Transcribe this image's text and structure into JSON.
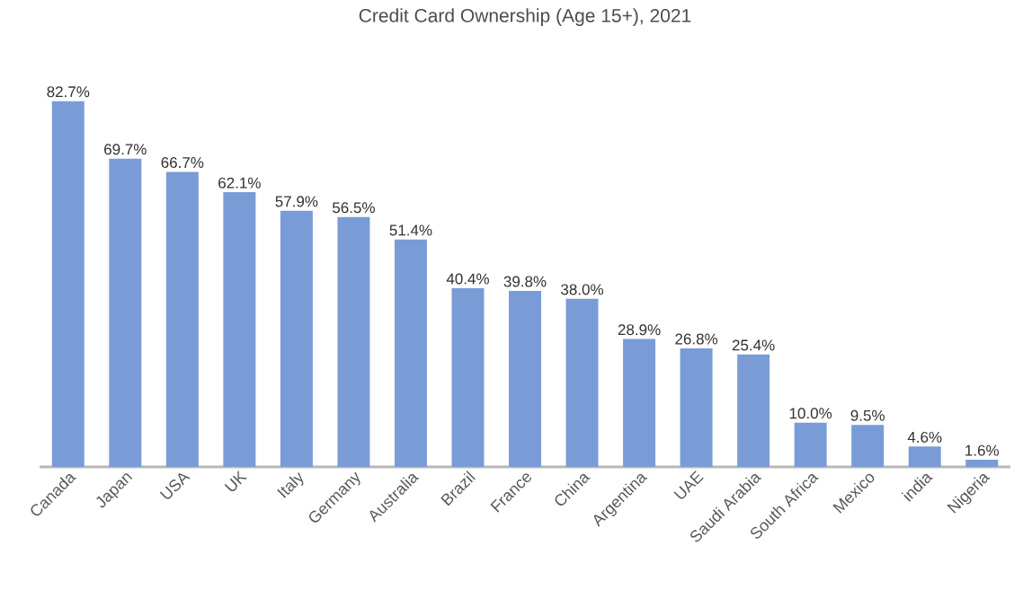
{
  "chart_data": {
    "type": "bar",
    "title": "Credit Card Ownership (Age 15+), 2021",
    "categories": [
      "Canada",
      "Japan",
      "USA",
      "UK",
      "Italy",
      "Germany",
      "Australia",
      "Brazil",
      "France",
      "China",
      "Argentina",
      "UAE",
      "Saudi Arabia",
      "South Africa",
      "Mexico",
      "india",
      "Nigeria"
    ],
    "values": [
      82.7,
      69.7,
      66.7,
      62.1,
      57.9,
      56.5,
      51.4,
      40.4,
      39.8,
      38.0,
      28.9,
      26.8,
      25.4,
      10.0,
      9.5,
      4.6,
      1.6
    ],
    "value_labels": [
      "82.7%",
      "69.7%",
      "66.7%",
      "62.1%",
      "57.9%",
      "56.5%",
      "51.4%",
      "40.4%",
      "39.8%",
      "38.0%",
      "28.9%",
      "26.8%",
      "25.4%",
      "10.0%",
      "9.5%",
      "4.6%",
      "1.6%"
    ],
    "color": "#7a9cd6",
    "tick_labels": "x"
  }
}
